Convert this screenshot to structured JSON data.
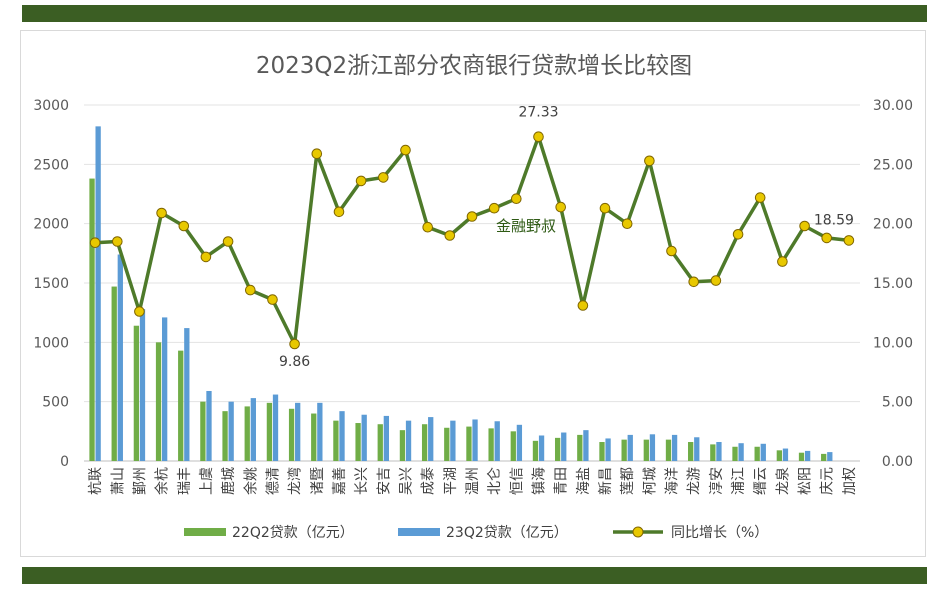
{
  "chart_data": {
    "type": "bar",
    "title": "2023Q2浙江部分农商银行贷款增长比较图",
    "categories": [
      "杭联",
      "萧山",
      "鄞州",
      "余杭",
      "瑞丰",
      "上虞",
      "鹿城",
      "余姚",
      "德清",
      "龙湾",
      "诸暨",
      "嘉善",
      "长兴",
      "安吉",
      "吴兴",
      "成泰",
      "平湖",
      "温州",
      "北仑",
      "恒信",
      "镇海",
      "青田",
      "海盐",
      "新昌",
      "莲都",
      "柯城",
      "海洋",
      "龙游",
      "淳安",
      "浦江",
      "缙云",
      "龙泉",
      "松阳",
      "庆元",
      "加权"
    ],
    "series": [
      {
        "name": "22Q2贷款（亿元）",
        "type": "bar",
        "axis": "left",
        "color": "#70ad47",
        "values": [
          2380,
          1470,
          1140,
          1000,
          930,
          500,
          420,
          460,
          490,
          440,
          400,
          340,
          320,
          310,
          260,
          310,
          280,
          290,
          275,
          250,
          170,
          195,
          220,
          160,
          180,
          180,
          180,
          160,
          140,
          120,
          120,
          90,
          70,
          60,
          null
        ]
      },
      {
        "name": "23Q2贷款（亿元）",
        "type": "bar",
        "axis": "right-bars",
        "color": "#5b9bd5",
        "values": [
          2820,
          1740,
          1280,
          1210,
          1120,
          590,
          500,
          530,
          560,
          490,
          490,
          420,
          390,
          380,
          340,
          370,
          340,
          350,
          335,
          305,
          215,
          240,
          260,
          190,
          220,
          225,
          220,
          200,
          160,
          150,
          145,
          105,
          85,
          75,
          null
        ]
      },
      {
        "name": "同比增长（%）",
        "type": "line",
        "axis": "right",
        "color": "#4e7a2a",
        "marker_color": "#e8c800",
        "values": [
          18.4,
          18.5,
          12.6,
          20.9,
          19.8,
          17.2,
          18.5,
          14.4,
          13.6,
          9.86,
          25.9,
          21.0,
          23.6,
          23.9,
          26.2,
          19.7,
          19.0,
          20.6,
          21.3,
          22.1,
          27.33,
          21.4,
          13.1,
          21.3,
          20.0,
          25.3,
          17.7,
          15.1,
          15.2,
          19.1,
          22.2,
          16.8,
          19.8,
          18.8,
          18.59
        ]
      }
    ],
    "y_left": {
      "min": 0,
      "max": 3000,
      "ticks": [
        "0",
        "500",
        "1000",
        "1500",
        "2000",
        "2500",
        "3000"
      ]
    },
    "y_right": {
      "min": 0,
      "max": 30,
      "ticks": [
        "0.00",
        "5.00",
        "10.00",
        "15.00",
        "20.00",
        "25.00",
        "30.00"
      ]
    },
    "data_labels": [
      {
        "series": 2,
        "index": 9,
        "text": "9.86"
      },
      {
        "series": 2,
        "index": 20,
        "text": "27.33"
      },
      {
        "series": 2,
        "index": 34,
        "text": "18.59"
      }
    ],
    "grid": true,
    "legend_position": "bottom",
    "watermark": "金融野叔"
  }
}
